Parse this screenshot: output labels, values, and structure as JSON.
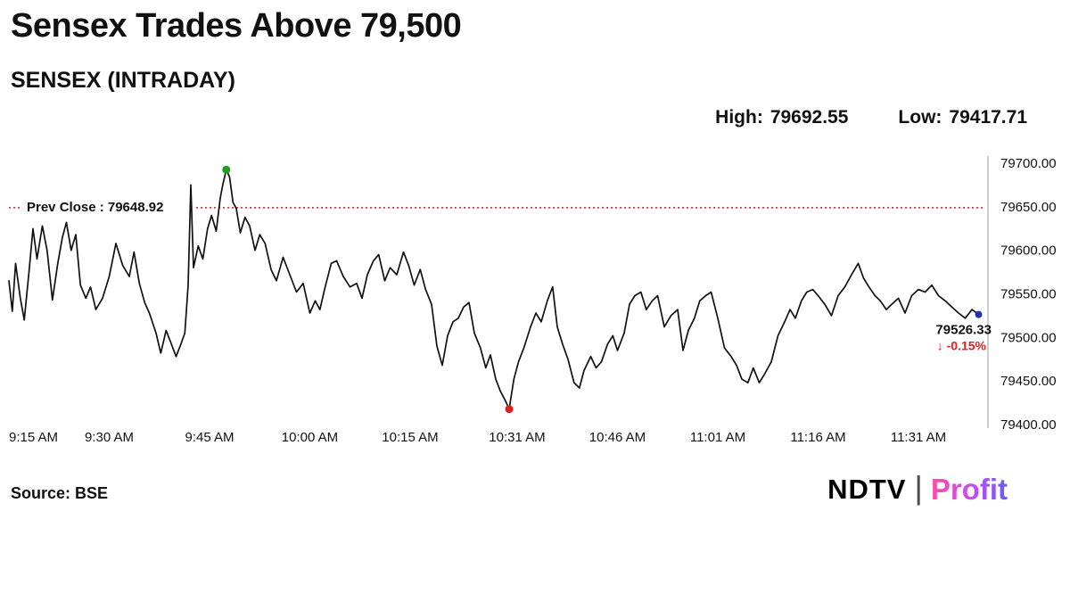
{
  "header": {
    "title": "Sensex Trades Above 79,500",
    "subtitle": "SENSEX (INTRADAY)",
    "high_label": "High:",
    "high_value": "79692.55",
    "low_label": "Low:",
    "low_value": "79417.71"
  },
  "footer": {
    "source": "Source: BSE",
    "logo_ndtv": "NDTV",
    "logo_separator": "|",
    "logo_profit": "Profit"
  },
  "annotations": {
    "prev_close_label": "Prev Close : 79648.92",
    "last_price": "79526.33",
    "change": "↓ -0.15%"
  },
  "colors": {
    "line": "#111111",
    "prev_close_line": "#cc2222",
    "high_marker": "#1f9d1f",
    "low_marker": "#e02020",
    "last_marker": "#2233aa",
    "change_text": "#e02020",
    "axis_line": "#999999",
    "tick_text": "#111111"
  },
  "chart_data": {
    "type": "line",
    "title": "SENSEX (INTRADAY)",
    "xlabel": "",
    "ylabel": "",
    "grid": false,
    "legend": false,
    "x_unit": "minutes since 9:15 AM",
    "xlim": [
      0,
      146
    ],
    "ylim": [
      79400,
      79700
    ],
    "y_ticks": [
      "79700.00",
      "79650.00",
      "79600.00",
      "79550.00",
      "79500.00",
      "79450.00",
      "79400.00"
    ],
    "x_ticks": [
      {
        "t": 0,
        "label": "9:15 AM"
      },
      {
        "t": 15,
        "label": "9:30 AM"
      },
      {
        "t": 30,
        "label": "9:45 AM"
      },
      {
        "t": 45,
        "label": "10:00 AM"
      },
      {
        "t": 60,
        "label": "10:15 AM"
      },
      {
        "t": 76,
        "label": "10:31 AM"
      },
      {
        "t": 91,
        "label": "10:46 AM"
      },
      {
        "t": 106,
        "label": "11:01 AM"
      },
      {
        "t": 121,
        "label": "11:16 AM"
      },
      {
        "t": 136,
        "label": "11:31 AM"
      }
    ],
    "prev_close": 79648.92,
    "high": 79692.55,
    "low": 79417.71,
    "last": 79526.33,
    "change_pct": "-0.15%",
    "points": [
      [
        0,
        79565
      ],
      [
        0.5,
        79530
      ],
      [
        1,
        79585
      ],
      [
        1.7,
        79545
      ],
      [
        2.3,
        79520
      ],
      [
        3,
        79575
      ],
      [
        3.6,
        79625
      ],
      [
        4.2,
        79590
      ],
      [
        5,
        79628
      ],
      [
        5.7,
        79600
      ],
      [
        6.5,
        79543
      ],
      [
        7.3,
        79585
      ],
      [
        8,
        79615
      ],
      [
        8.6,
        79632
      ],
      [
        9.3,
        79600
      ],
      [
        10,
        79618
      ],
      [
        10.7,
        79560
      ],
      [
        11.5,
        79545
      ],
      [
        12.2,
        79558
      ],
      [
        13,
        79532
      ],
      [
        14,
        79545
      ],
      [
        15,
        79570
      ],
      [
        16,
        79608
      ],
      [
        17,
        79583
      ],
      [
        18,
        79570
      ],
      [
        18.7,
        79598
      ],
      [
        19.5,
        79562
      ],
      [
        20.3,
        79540
      ],
      [
        21,
        79528
      ],
      [
        22,
        79505
      ],
      [
        22.7,
        79482
      ],
      [
        23.5,
        79508
      ],
      [
        24.3,
        79492
      ],
      [
        25,
        79478
      ],
      [
        25.7,
        79492
      ],
      [
        26.3,
        79505
      ],
      [
        26.8,
        79560
      ],
      [
        27.2,
        79675
      ],
      [
        27.6,
        79580
      ],
      [
        28.3,
        79605
      ],
      [
        29,
        79590
      ],
      [
        29.7,
        79625
      ],
      [
        30.3,
        79640
      ],
      [
        31,
        79622
      ],
      [
        31.6,
        79660
      ],
      [
        32,
        79676
      ],
      [
        32.5,
        79692.55
      ],
      [
        33,
        79684
      ],
      [
        33.5,
        79655
      ],
      [
        34,
        79648
      ],
      [
        34.6,
        79620
      ],
      [
        35.3,
        79638
      ],
      [
        36,
        79628
      ],
      [
        36.8,
        79600
      ],
      [
        37.5,
        79618
      ],
      [
        38.3,
        79608
      ],
      [
        39.2,
        79578
      ],
      [
        40,
        79565
      ],
      [
        41,
        79592
      ],
      [
        42,
        79572
      ],
      [
        43,
        79552
      ],
      [
        44,
        79562
      ],
      [
        45,
        79528
      ],
      [
        45.8,
        79542
      ],
      [
        46.5,
        79532
      ],
      [
        47.3,
        79558
      ],
      [
        48.2,
        79585
      ],
      [
        49,
        79588
      ],
      [
        50,
        79570
      ],
      [
        51,
        79558
      ],
      [
        52,
        79562
      ],
      [
        52.8,
        79545
      ],
      [
        53.6,
        79572
      ],
      [
        54.5,
        79588
      ],
      [
        55.3,
        79595
      ],
      [
        56.2,
        79565
      ],
      [
        57,
        79580
      ],
      [
        58,
        79572
      ],
      [
        59,
        79598
      ],
      [
        59.8,
        79582
      ],
      [
        60.6,
        79560
      ],
      [
        61.5,
        79578
      ],
      [
        62.3,
        79555
      ],
      [
        63.2,
        79538
      ],
      [
        64,
        79490
      ],
      [
        64.8,
        79468
      ],
      [
        65.6,
        79502
      ],
      [
        66.4,
        79518
      ],
      [
        67.2,
        79522
      ],
      [
        68,
        79535
      ],
      [
        68.8,
        79540
      ],
      [
        69.6,
        79505
      ],
      [
        70.5,
        79488
      ],
      [
        71.3,
        79465
      ],
      [
        72,
        79480
      ],
      [
        72.8,
        79452
      ],
      [
        73.5,
        79438
      ],
      [
        74.2,
        79428
      ],
      [
        74.8,
        79417.71
      ],
      [
        75.5,
        79452
      ],
      [
        76.2,
        79472
      ],
      [
        77,
        79488
      ],
      [
        78,
        79512
      ],
      [
        78.8,
        79528
      ],
      [
        79.6,
        79518
      ],
      [
        80.5,
        79542
      ],
      [
        81.3,
        79558
      ],
      [
        82,
        79512
      ],
      [
        82.8,
        79492
      ],
      [
        83.6,
        79475
      ],
      [
        84.5,
        79448
      ],
      [
        85.3,
        79442
      ],
      [
        86,
        79462
      ],
      [
        87,
        79478
      ],
      [
        87.8,
        79465
      ],
      [
        88.6,
        79472
      ],
      [
        89.5,
        79492
      ],
      [
        90.3,
        79502
      ],
      [
        91,
        79485
      ],
      [
        92,
        79505
      ],
      [
        92.8,
        79538
      ],
      [
        93.6,
        79548
      ],
      [
        94.5,
        79552
      ],
      [
        95.3,
        79532
      ],
      [
        96.2,
        79542
      ],
      [
        97,
        79548
      ],
      [
        98,
        79512
      ],
      [
        99,
        79525
      ],
      [
        100,
        79532
      ],
      [
        100.8,
        79485
      ],
      [
        101.6,
        79508
      ],
      [
        102.5,
        79522
      ],
      [
        103.3,
        79542
      ],
      [
        104.2,
        79548
      ],
      [
        105,
        79552
      ],
      [
        106,
        79522
      ],
      [
        107,
        79488
      ],
      [
        108,
        79478
      ],
      [
        108.8,
        79468
      ],
      [
        109.6,
        79452
      ],
      [
        110.5,
        79448
      ],
      [
        111.3,
        79465
      ],
      [
        112.2,
        79448
      ],
      [
        113,
        79458
      ],
      [
        114,
        79472
      ],
      [
        115,
        79502
      ],
      [
        116,
        79518
      ],
      [
        116.8,
        79532
      ],
      [
        117.6,
        79522
      ],
      [
        118.5,
        79542
      ],
      [
        119.3,
        79552
      ],
      [
        120.2,
        79555
      ],
      [
        121,
        79548
      ],
      [
        122,
        79538
      ],
      [
        123,
        79525
      ],
      [
        124,
        79548
      ],
      [
        125,
        79558
      ],
      [
        126,
        79572
      ],
      [
        127,
        79585
      ],
      [
        127.8,
        79568
      ],
      [
        128.6,
        79558
      ],
      [
        129.5,
        79548
      ],
      [
        130.3,
        79542
      ],
      [
        131.2,
        79532
      ],
      [
        132,
        79538
      ],
      [
        133,
        79545
      ],
      [
        134,
        79528
      ],
      [
        135,
        79548
      ],
      [
        136,
        79555
      ],
      [
        137,
        79552
      ],
      [
        138,
        79560
      ],
      [
        139,
        79548
      ],
      [
        140,
        79542
      ],
      [
        141,
        79535
      ],
      [
        142,
        79528
      ],
      [
        143,
        79522
      ],
      [
        144,
        79532
      ],
      [
        145,
        79526.33
      ]
    ]
  }
}
